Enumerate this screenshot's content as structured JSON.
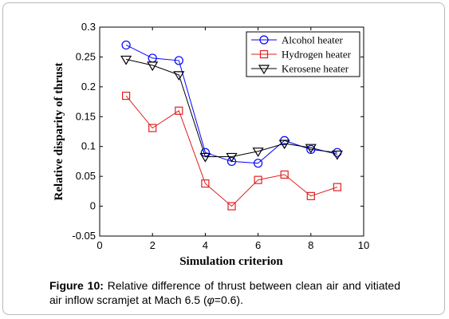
{
  "chart_data": {
    "type": "line",
    "title": "",
    "xlabel": "Simulation criterion",
    "ylabel": "Relative disparity of thrust",
    "xlim": [
      0,
      10
    ],
    "ylim": [
      -0.05,
      0.3
    ],
    "xticks": [
      "0",
      "2",
      "4",
      "6",
      "8",
      "10"
    ],
    "yticks": [
      "-0.05",
      "0",
      "0.05",
      "0.1",
      "0.15",
      "0.2",
      "0.25",
      "0.3"
    ],
    "legend_position": "top-right",
    "grid": false,
    "series": [
      {
        "name": "Alcohol heater",
        "color": "#0000ff",
        "marker": "circle",
        "x": [
          1,
          2,
          3,
          4,
          5,
          6,
          7,
          8,
          9
        ],
        "y": [
          0.27,
          0.248,
          0.244,
          0.09,
          0.075,
          0.072,
          0.11,
          0.095,
          0.09
        ]
      },
      {
        "name": "Hydrogen heater",
        "color": "#e02020",
        "marker": "square",
        "x": [
          1,
          2,
          3,
          4,
          5,
          6,
          7,
          8,
          9
        ],
        "y": [
          0.185,
          0.131,
          0.16,
          0.038,
          0.0,
          0.044,
          0.053,
          0.017,
          0.032
        ]
      },
      {
        "name": "Kerosene heater",
        "color": "#000000",
        "marker": "triangle-down",
        "x": [
          1,
          2,
          3,
          4,
          5,
          6,
          7,
          8,
          9
        ],
        "y": [
          0.246,
          0.236,
          0.22,
          0.083,
          0.083,
          0.092,
          0.105,
          0.098,
          0.087
        ]
      }
    ]
  },
  "caption": {
    "label": "Figure 10:",
    "text": " Relative difference of thrust between clean air and vitiated air inflow scramjet at Mach 6.5 (",
    "phi": "φ",
    "tail": "=0.6)."
  }
}
